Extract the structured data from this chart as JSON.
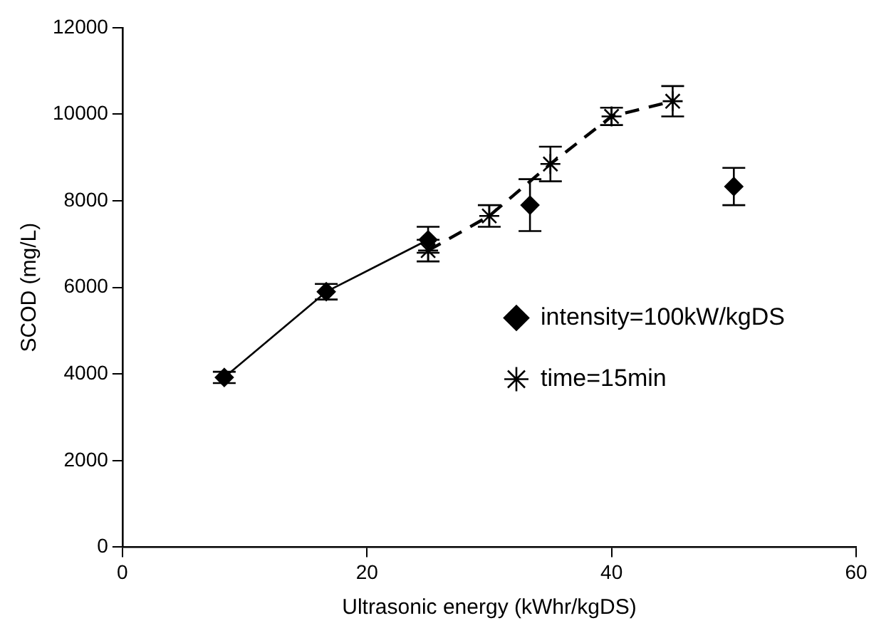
{
  "chart_data": {
    "type": "line",
    "xlabel": "Ultrasonic energy (kWhr/kgDS)",
    "ylabel": "SCOD (mg/L)",
    "xlim": [
      0,
      60
    ],
    "xticks": [
      0,
      20,
      40,
      60
    ],
    "ylim": [
      0,
      12000
    ],
    "yticks": [
      0,
      2000,
      4000,
      6000,
      8000,
      10000,
      12000
    ],
    "grid": false,
    "legend": "bottom right",
    "series": [
      {
        "name": "intensity=100kW/kgDS",
        "color": "#000000",
        "marker": "diamond",
        "line_style": "solid",
        "x": [
          8.33,
          16.67,
          25
        ],
        "values": [
          3920,
          5900,
          7100
        ],
        "errors": [
          130,
          180,
          300
        ]
      },
      {
        "type": "scatter",
        "color": "#000000",
        "marker": "diamond",
        "x": [
          33.33,
          50
        ],
        "values": [
          7900,
          8330
        ],
        "errors": [
          600,
          430
        ]
      },
      {
        "name": "time=15min",
        "color": "#000000",
        "marker": "cross",
        "line_style": "dashed",
        "x": [
          25,
          30,
          35,
          40,
          45
        ],
        "values": [
          6850,
          7650,
          8850,
          9950,
          10300
        ],
        "errors": [
          250,
          250,
          400,
          200,
          350
        ]
      }
    ]
  }
}
